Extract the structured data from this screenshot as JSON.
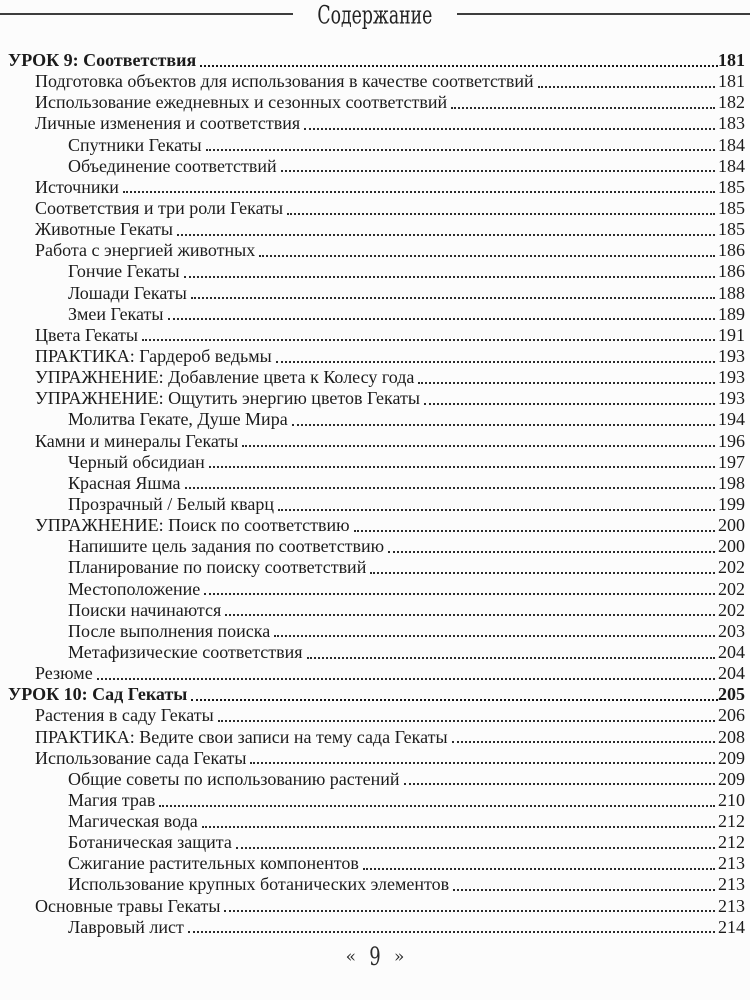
{
  "header": {
    "title": "Содержание"
  },
  "footer": {
    "left_guillemet": "«",
    "page_number": "9",
    "right_guillemet": "»"
  },
  "toc": {
    "entries": [
      {
        "label": "УРОК 9: Соответствия",
        "page": "181",
        "level": 0,
        "bold": true
      },
      {
        "label": "Подготовка объектов для использования в качестве соответствий",
        "page": "181",
        "level": 1,
        "bold": false
      },
      {
        "label": "Использование ежедневных и сезонных соответствий",
        "page": "182",
        "level": 1,
        "bold": false
      },
      {
        "label": "Личные изменения и соответствия",
        "page": "183",
        "level": 1,
        "bold": false
      },
      {
        "label": "Спутники Гекаты",
        "page": "184",
        "level": 2,
        "bold": false
      },
      {
        "label": "Объединение соответствий",
        "page": "184",
        "level": 2,
        "bold": false
      },
      {
        "label": "Источники",
        "page": "185",
        "level": 1,
        "bold": false
      },
      {
        "label": "Соответствия и три роли Гекаты",
        "page": "185",
        "level": 1,
        "bold": false
      },
      {
        "label": "Животные Гекаты",
        "page": "185",
        "level": 1,
        "bold": false
      },
      {
        "label": "Работа с энергией животных",
        "page": "186",
        "level": 1,
        "bold": false
      },
      {
        "label": "Гончие Гекаты",
        "page": "186",
        "level": 2,
        "bold": false
      },
      {
        "label": "Лошади Гекаты",
        "page": "188",
        "level": 2,
        "bold": false
      },
      {
        "label": "Змеи Гекаты",
        "page": "189",
        "level": 2,
        "bold": false
      },
      {
        "label": "Цвета Гекаты",
        "page": "191",
        "level": 1,
        "bold": false
      },
      {
        "label": "ПРАКТИКА: Гардероб ведьмы",
        "page": "193",
        "level": 1,
        "bold": false
      },
      {
        "label": "УПРАЖНЕНИЕ: Добавление цвета к Колесу года",
        "page": "193",
        "level": 1,
        "bold": false
      },
      {
        "label": "УПРАЖНЕНИЕ: Ощутить энергию цветов Гекаты",
        "page": "193",
        "level": 1,
        "bold": false
      },
      {
        "label": "Молитва Гекате, Душе Мира",
        "page": "194",
        "level": 2,
        "bold": false
      },
      {
        "label": "Камни и минералы Гекаты",
        "page": "196",
        "level": 1,
        "bold": false
      },
      {
        "label": "Черный обсидиан",
        "page": "197",
        "level": 2,
        "bold": false
      },
      {
        "label": "Красная Яшма",
        "page": "198",
        "level": 2,
        "bold": false
      },
      {
        "label": "Прозрачный / Белый кварц",
        "page": "199",
        "level": 2,
        "bold": false
      },
      {
        "label": "УПРАЖНЕНИЕ: Поиск по соответствию",
        "page": "200",
        "level": 1,
        "bold": false
      },
      {
        "label": "Напишите цель задания по соответствию",
        "page": "200",
        "level": 2,
        "bold": false
      },
      {
        "label": "Планирование по поиску соответствий",
        "page": "202",
        "level": 2,
        "bold": false
      },
      {
        "label": "Местоположение",
        "page": "202",
        "level": 2,
        "bold": false
      },
      {
        "label": "Поиски начинаются",
        "page": "202",
        "level": 2,
        "bold": false
      },
      {
        "label": "После выполнения поиска",
        "page": "203",
        "level": 2,
        "bold": false
      },
      {
        "label": "Метафизические соответствия",
        "page": "204",
        "level": 2,
        "bold": false
      },
      {
        "label": "Резюме",
        "page": "204",
        "level": 1,
        "bold": false
      },
      {
        "label": "УРОК 10: Сад Гекаты",
        "page": "205",
        "level": 0,
        "bold": true
      },
      {
        "label": "Растения в саду Гекаты",
        "page": "206",
        "level": 1,
        "bold": false
      },
      {
        "label": "ПРАКТИКА: Ведите свои записи на тему сада Гекаты",
        "page": "208",
        "level": 1,
        "bold": false
      },
      {
        "label": "Использование сада Гекаты",
        "page": "209",
        "level": 1,
        "bold": false
      },
      {
        "label": "Общие советы по использованию растений",
        "page": "209",
        "level": 2,
        "bold": false
      },
      {
        "label": "Магия трав",
        "page": "210",
        "level": 2,
        "bold": false
      },
      {
        "label": "Магическая вода",
        "page": "212",
        "level": 2,
        "bold": false
      },
      {
        "label": "Ботаническая защита",
        "page": "212",
        "level": 2,
        "bold": false
      },
      {
        "label": "Сжигание растительных компонентов",
        "page": "213",
        "level": 2,
        "bold": false
      },
      {
        "label": "Использование крупных ботанических элементов",
        "page": "213",
        "level": 2,
        "bold": false
      },
      {
        "label": "Основные травы Гекаты",
        "page": "213",
        "level": 1,
        "bold": false
      },
      {
        "label": "Лавровый лист",
        "page": "214",
        "level": 2,
        "bold": false
      }
    ]
  }
}
